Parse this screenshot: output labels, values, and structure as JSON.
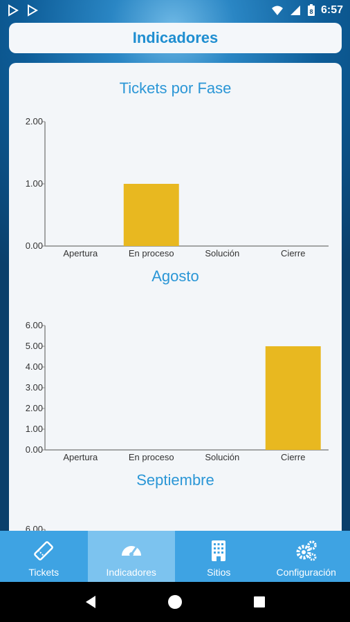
{
  "status_bar": {
    "time": "6:57",
    "battery": "8"
  },
  "header": {
    "title": "Indicadores"
  },
  "charts": [
    {
      "title": "Tickets por Fase",
      "categories": [
        "Apertura",
        "En proceso",
        "Solución",
        "Cierre"
      ],
      "values": [
        0,
        1,
        0,
        0
      ],
      "y_ticks": [
        "0.00",
        "1.00",
        "2.00"
      ],
      "ylim": [
        0,
        2
      ]
    },
    {
      "title": "Agosto",
      "categories": [
        "Apertura",
        "En proceso",
        "Solución",
        "Cierre"
      ],
      "values": [
        0,
        0,
        0,
        5
      ],
      "y_ticks": [
        "0.00",
        "1.00",
        "2.00",
        "3.00",
        "4.00",
        "5.00",
        "6.00"
      ],
      "ylim": [
        0,
        6
      ]
    },
    {
      "title": "Septiembre",
      "y_ticks": [
        "6.00"
      ],
      "ylim": [
        0,
        6
      ]
    }
  ],
  "chart_data": [
    {
      "type": "bar",
      "title": "Tickets por Fase",
      "categories": [
        "Apertura",
        "En proceso",
        "Solución",
        "Cierre"
      ],
      "values": [
        0,
        1,
        0,
        0
      ],
      "ylim": [
        0,
        2
      ],
      "bar_color": "#e8b820"
    },
    {
      "type": "bar",
      "title": "Agosto",
      "categories": [
        "Apertura",
        "En proceso",
        "Solución",
        "Cierre"
      ],
      "values": [
        0,
        0,
        0,
        5
      ],
      "ylim": [
        0,
        6
      ],
      "bar_color": "#e8b820"
    }
  ],
  "bottom_nav": {
    "items": [
      {
        "label": "Tickets",
        "icon": "ticket-icon"
      },
      {
        "label": "Indicadores",
        "icon": "gauge-icon",
        "active": true
      },
      {
        "label": "Sitios",
        "icon": "building-icon"
      },
      {
        "label": "Configuración",
        "icon": "gears-icon"
      }
    ]
  },
  "colors": {
    "accent": "#1f8ed0",
    "bar": "#e8b820",
    "nav": "#3ea3e3",
    "nav_active": "#7cc3ef"
  }
}
